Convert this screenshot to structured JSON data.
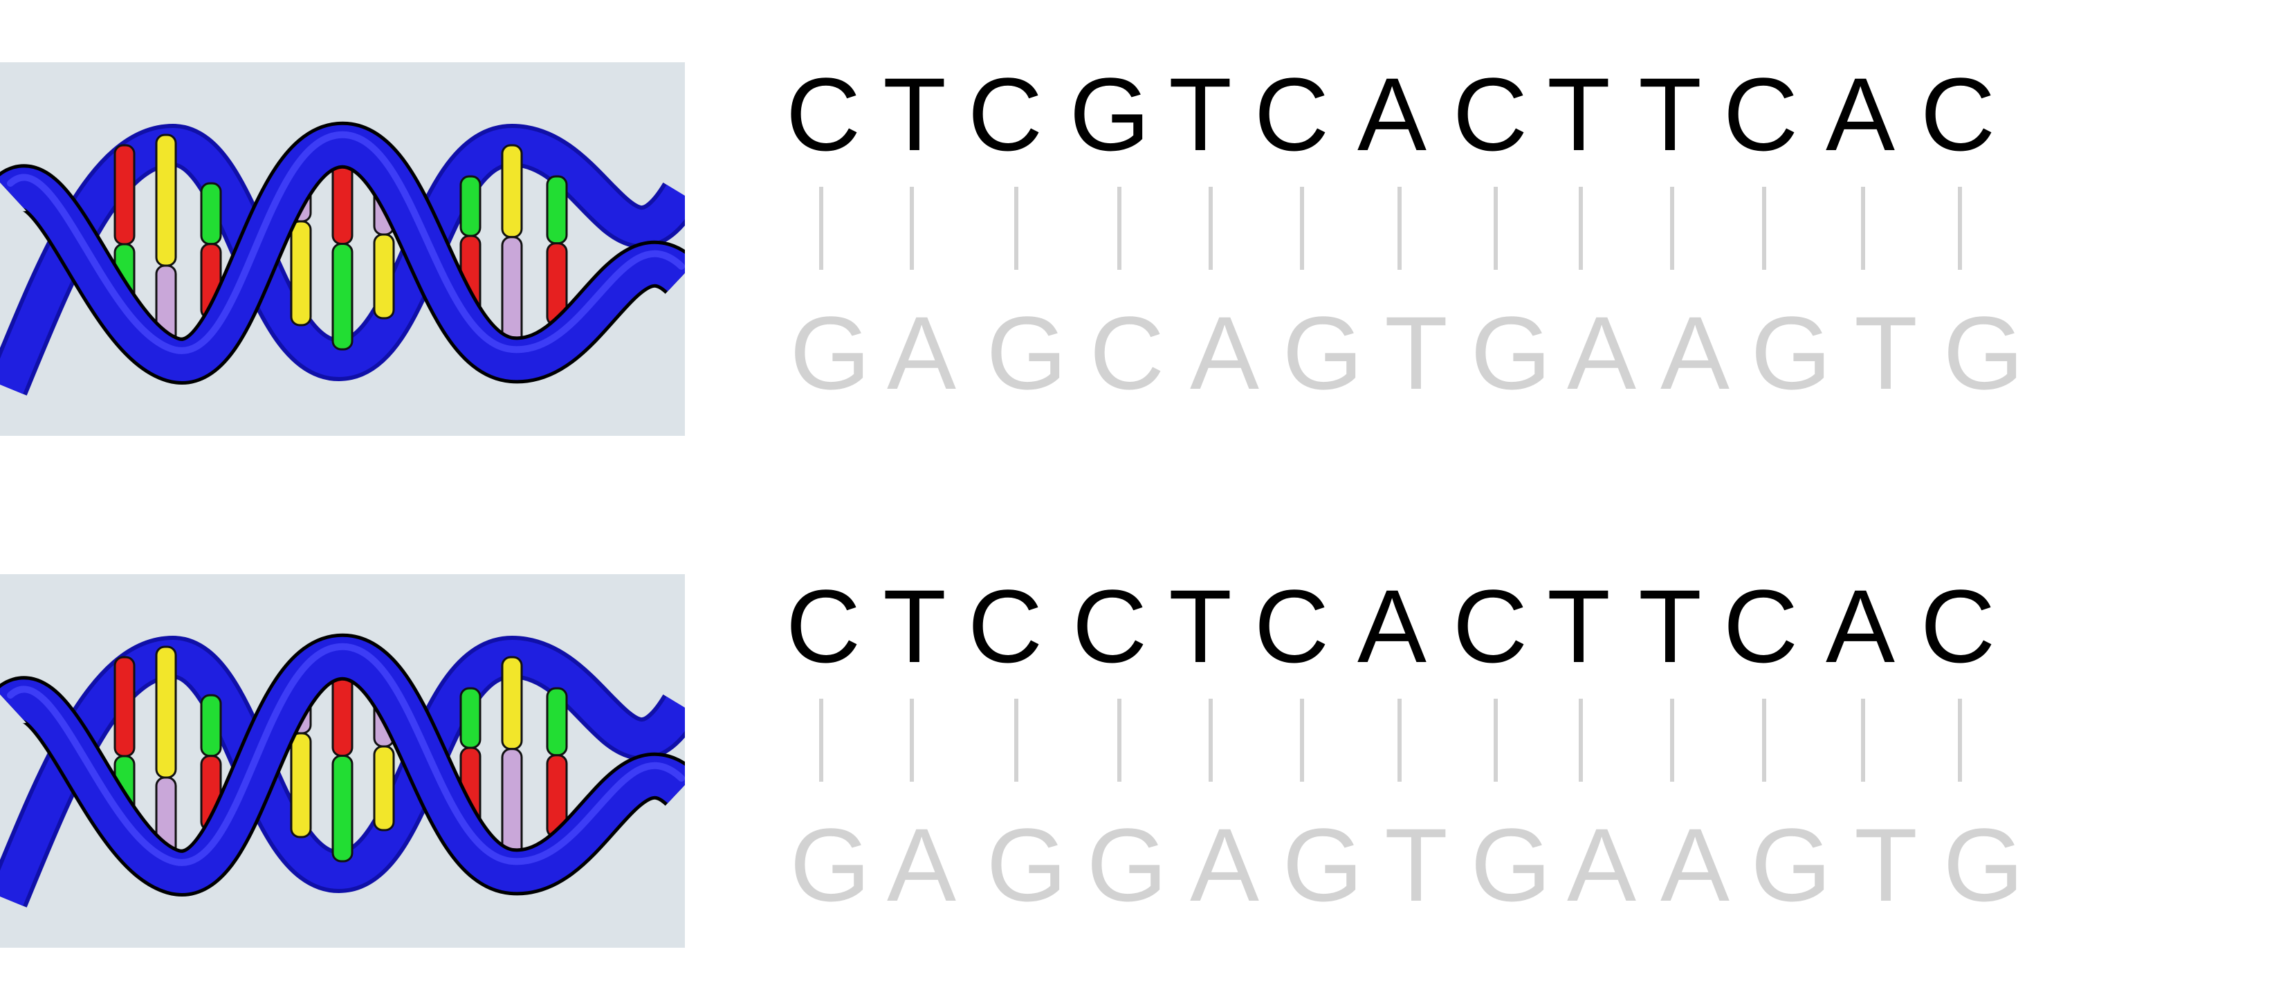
{
  "colors": {
    "background": "#ffffff",
    "dna_panel_background": "#dce3e8",
    "helix_backbone": "#1f1fe0",
    "helix_backbone_dark": "#1010a8",
    "base_red": "#e62020",
    "base_yellow": "#f2e62a",
    "base_green": "#22dd33",
    "base_lilac": "#c9a7d9",
    "top_strand_text": "#000000",
    "complement_strand_text": "#d2d2d2",
    "pair_tick": "#d2d2d2"
  },
  "icons": {
    "dna": "dna-double-helix-icon"
  },
  "pairs": [
    {
      "top": [
        "C",
        "T",
        "C",
        "G",
        "T",
        "C",
        "A",
        "C",
        "T",
        "T",
        "C",
        "A",
        "C"
      ],
      "bottom": [
        "G",
        "A",
        "G",
        "C",
        "A",
        "G",
        "T",
        "G",
        "A",
        "A",
        "G",
        "T",
        "G"
      ]
    },
    {
      "top": [
        "C",
        "T",
        "C",
        "C",
        "T",
        "C",
        "A",
        "C",
        "T",
        "T",
        "C",
        "A",
        "C"
      ],
      "bottom": [
        "G",
        "A",
        "G",
        "G",
        "A",
        "G",
        "T",
        "G",
        "A",
        "A",
        "G",
        "T",
        "G"
      ]
    }
  ]
}
